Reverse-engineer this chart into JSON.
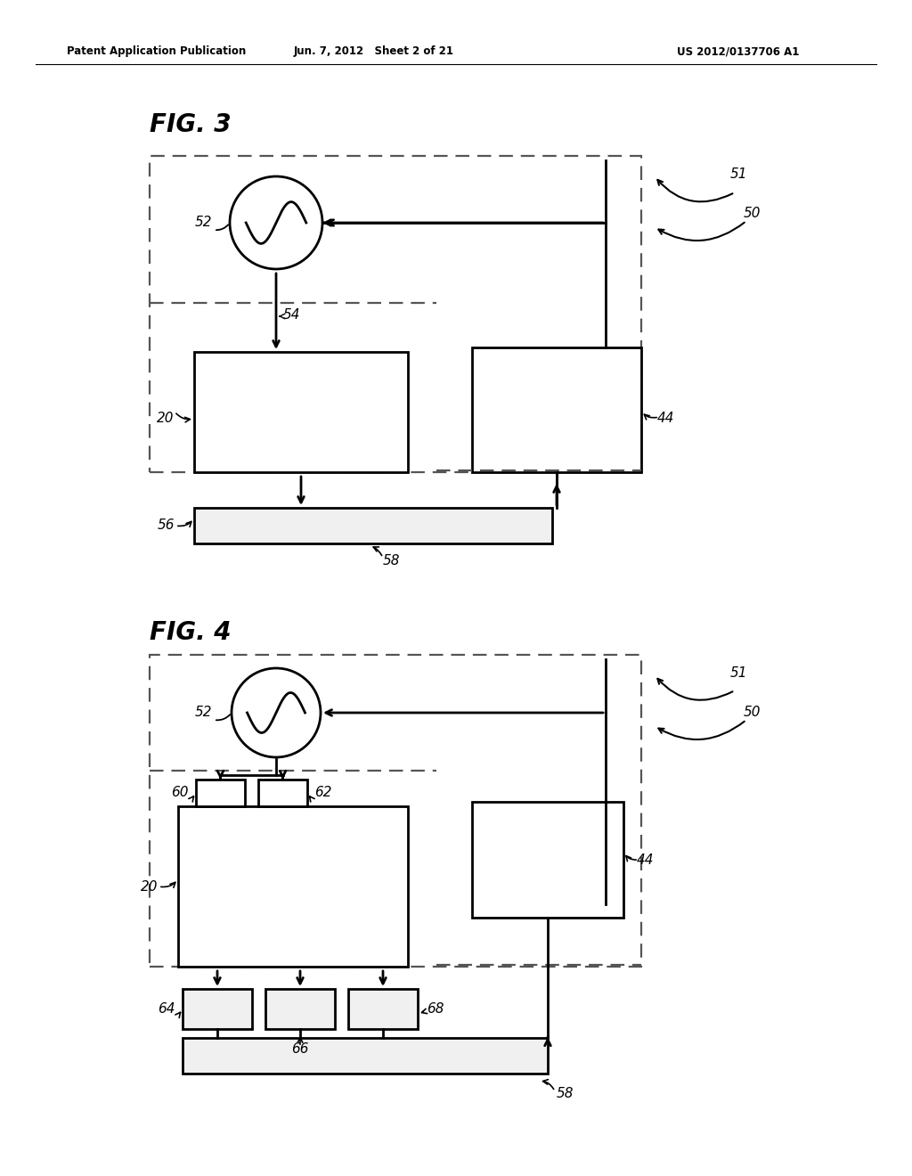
{
  "header_left": "Patent Application Publication",
  "header_mid": "Jun. 7, 2012   Sheet 2 of 21",
  "header_right": "US 2012/0137706 A1",
  "fig3_label": "FIG. 3",
  "fig4_label": "FIG. 4",
  "background": "#ffffff",
  "line_color": "#000000"
}
